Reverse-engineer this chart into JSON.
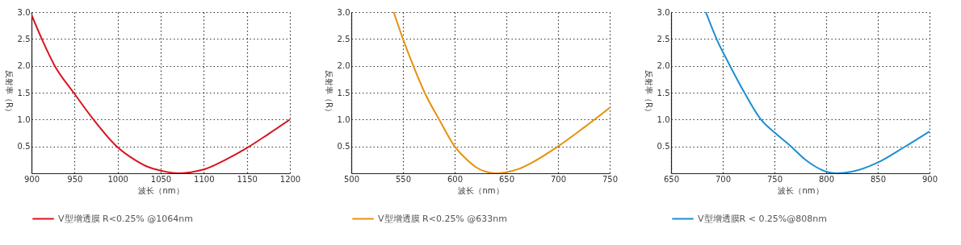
{
  "chart_data": [
    {
      "type": "line",
      "xlabel": "波长（nm）",
      "ylabel": "反射率（R）",
      "xlim": [
        900,
        1200
      ],
      "xticks": [
        900,
        950,
        1000,
        1050,
        1100,
        1150,
        1200
      ],
      "ylim": [
        0,
        3
      ],
      "yticks": [
        {
          "value": 0.5,
          "label": "0.5"
        },
        {
          "value": 1,
          "label": "1.0"
        },
        {
          "value": 1.5,
          "label": "1.5"
        },
        {
          "value": 2,
          "label": "2.0"
        },
        {
          "value": 2.5,
          "label": "2.5"
        },
        {
          "value": 3,
          "label": "3.0"
        }
      ],
      "grid": true,
      "legend": "bottom",
      "x": [
        900,
        912,
        927,
        949,
        972,
        999,
        1020,
        1035,
        1050,
        1070,
        1085,
        1100,
        1125,
        1150,
        1175,
        1200
      ],
      "series": [
        {
          "name": "V型增透膜 R<0.25% @1064nm",
          "color": "#d9141e",
          "values": [
            2.95,
            2.5,
            2.0,
            1.5,
            1.0,
            0.5,
            0.25,
            0.12,
            0.05,
            0.0,
            0.02,
            0.07,
            0.25,
            0.47,
            0.73,
            1.0
          ]
        }
      ]
    },
    {
      "type": "line",
      "xlabel": "波长（nm）",
      "ylabel": "反射率（R）",
      "xlim": [
        500,
        750
      ],
      "xticks": [
        500,
        550,
        600,
        650,
        700,
        750
      ],
      "ylim": [
        0,
        3
      ],
      "yticks": [
        {
          "value": 0.5,
          "label": "0.5"
        },
        {
          "value": 1,
          "label": "1.0"
        },
        {
          "value": 1.5,
          "label": "1.5"
        },
        {
          "value": 2,
          "label": "2.0"
        },
        {
          "value": 2.5,
          "label": "2.5"
        },
        {
          "value": 3,
          "label": "3.0"
        }
      ],
      "grid": true,
      "legend": "bottom",
      "x": [
        541,
        550,
        560,
        571,
        585,
        600,
        612,
        620,
        630,
        640,
        650,
        662,
        675,
        700,
        725,
        750
      ],
      "series": [
        {
          "name": "V型增透膜 R<0.25% @633nm",
          "color": "#e8900e",
          "values": [
            3.0,
            2.5,
            2.0,
            1.5,
            1.0,
            0.5,
            0.25,
            0.12,
            0.03,
            0.0,
            0.02,
            0.08,
            0.2,
            0.5,
            0.85,
            1.22
          ]
        }
      ]
    },
    {
      "type": "line",
      "xlabel": "波长（nm）",
      "ylabel": "反射率（R）",
      "xlim": [
        650,
        900
      ],
      "xticks": [
        650,
        700,
        750,
        800,
        850,
        900
      ],
      "ylim": [
        0,
        3
      ],
      "yticks": [
        {
          "value": 0.5,
          "label": "0.5"
        },
        {
          "value": 1,
          "label": "1.0"
        },
        {
          "value": 1.5,
          "label": "1.5"
        },
        {
          "value": 2,
          "label": "2.0"
        },
        {
          "value": 2.5,
          "label": "2.5"
        },
        {
          "value": 3,
          "label": "3.0"
        }
      ],
      "grid": true,
      "legend": "bottom",
      "x": [
        683.6,
        694,
        707,
        721,
        737,
        750,
        766,
        780,
        790,
        800,
        810,
        825,
        850,
        875,
        900
      ],
      "series": [
        {
          "name": "V型增透膜R < 0.25%@808nm",
          "color": "#1a8fd0",
          "values": [
            3.0,
            2.5,
            2.0,
            1.5,
            1.0,
            0.76,
            0.5,
            0.25,
            0.12,
            0.03,
            0.0,
            0.03,
            0.2,
            0.48,
            0.78
          ]
        }
      ]
    }
  ]
}
